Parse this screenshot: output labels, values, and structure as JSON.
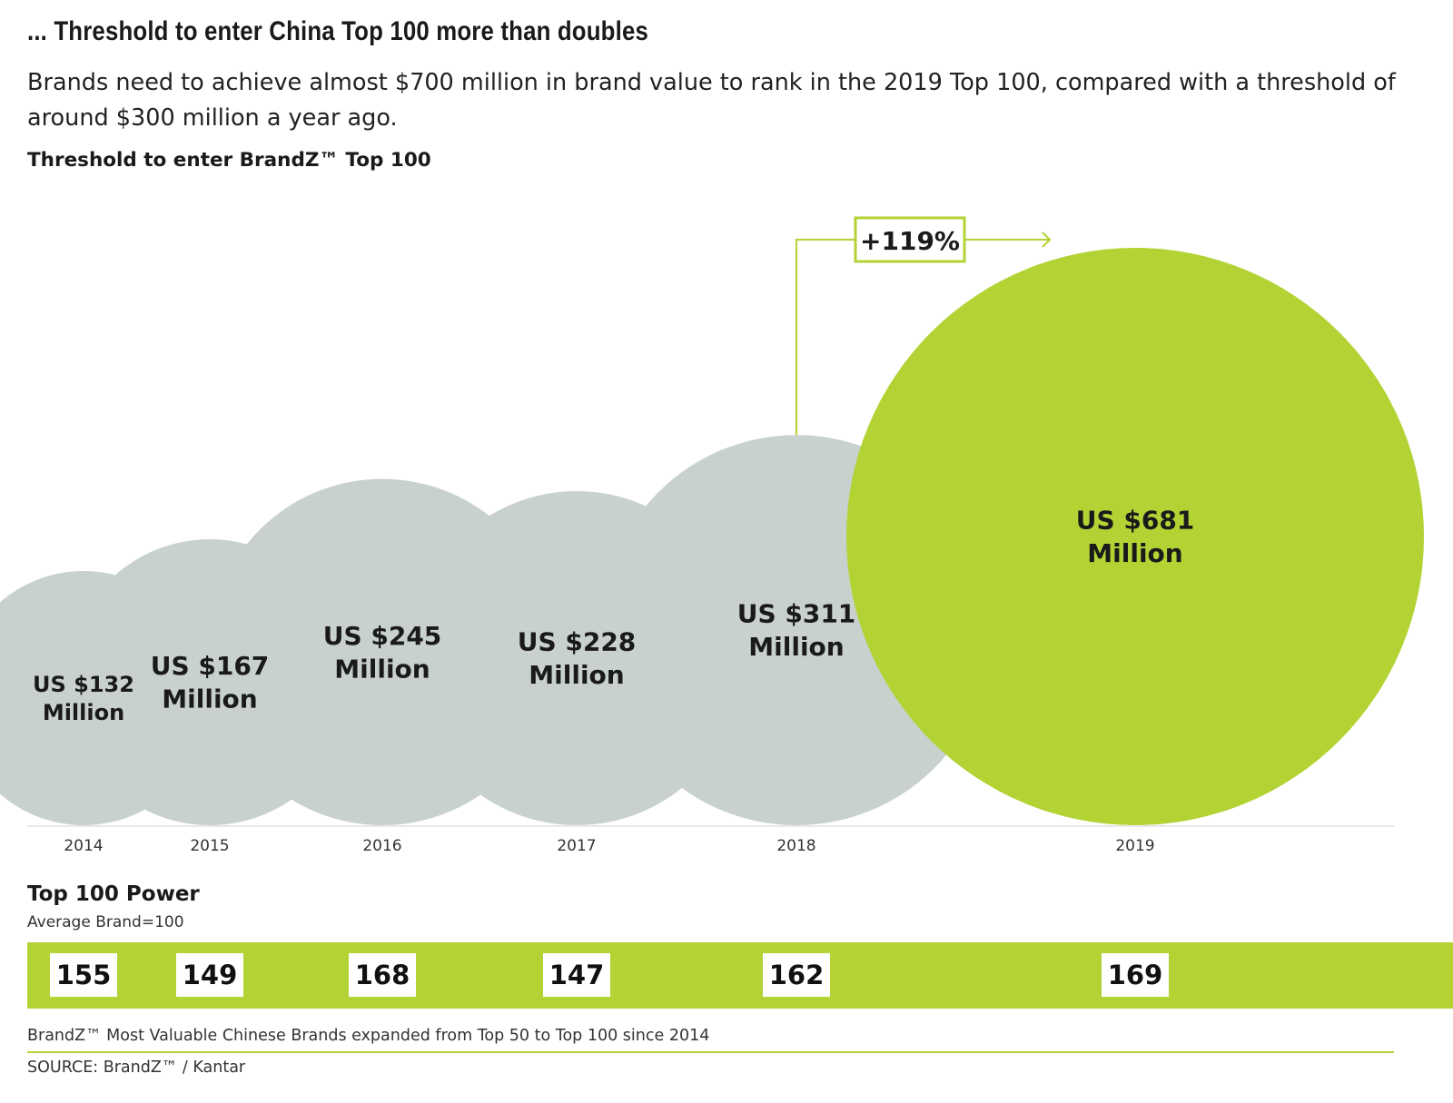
{
  "headline": "... Threshold to enter China Top 100 more than doubles",
  "subhead": "Brands need to achieve almost $700 million in brand value to rank in the 2019 Top 100, compared with a threshold of around $300 million a year ago.",
  "chart_title": "Threshold to enter BrandZ™ Top 100",
  "chart_data": {
    "type": "bubble",
    "title": "Threshold to enter BrandZ™ Top 100",
    "unit": "US $ Million",
    "categories": [
      "2014",
      "2015",
      "2016",
      "2017",
      "2018",
      "2019"
    ],
    "values": [
      132,
      167,
      245,
      228,
      311,
      681
    ],
    "labels": [
      [
        "US $132",
        "Million"
      ],
      [
        "US $167",
        "Million"
      ],
      [
        "US $245",
        "Million"
      ],
      [
        "US $228",
        "Million"
      ],
      [
        "US $311",
        "Million"
      ],
      [
        "US $681",
        "Million"
      ]
    ],
    "highlight_index": 5,
    "annotation": "+119%",
    "colors": {
      "default": "#c8d1cd",
      "highlight": "#b3d334",
      "text": "#1a1a1a"
    }
  },
  "power": {
    "title": "Top 100 Power",
    "subtitle": "Average Brand=100",
    "values": [
      "155",
      "149",
      "168",
      "147",
      "162",
      "169"
    ]
  },
  "footnote": "BrandZ™ Most Valuable Chinese Brands expanded from Top 50 to Top 100 since 2014",
  "source": "SOURCE: BrandZ™ / Kantar"
}
